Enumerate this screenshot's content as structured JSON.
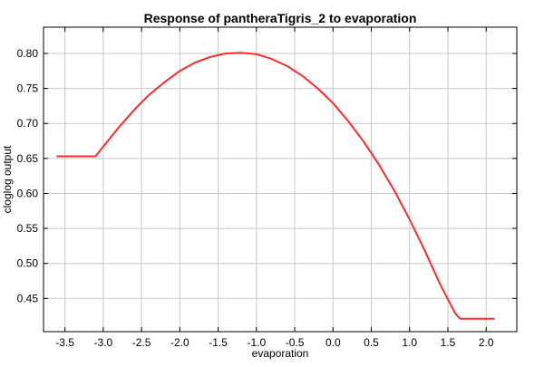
{
  "chart_data": {
    "type": "line",
    "title": "Response of pantheraTigris_2 to evaporation",
    "xlabel": "evaporation",
    "ylabel": "cloglog output",
    "xlim": [
      -3.78,
      2.4
    ],
    "ylim": [
      0.4025,
      0.8375
    ],
    "xticks": [
      -3.5,
      -3.0,
      -2.5,
      -2.0,
      -1.5,
      -1.0,
      -0.5,
      0.0,
      0.5,
      1.0,
      1.5,
      2.0
    ],
    "xtick_labels": [
      "-3.5",
      "-3.0",
      "-2.5",
      "-2.0",
      "-1.5",
      "-1.0",
      "-0.5",
      "0.0",
      "0.5",
      "1.0",
      "1.5",
      "2.0"
    ],
    "yticks": [
      0.45,
      0.5,
      0.55,
      0.6,
      0.65,
      0.7,
      0.75,
      0.8
    ],
    "ytick_labels": [
      "0.45",
      "0.50",
      "0.55",
      "0.60",
      "0.65",
      "0.70",
      "0.75",
      "0.80"
    ],
    "grid": true,
    "series": [
      {
        "color": "#ff2a2a",
        "x": [
          -3.6,
          -3.1,
          -3.0,
          -2.8,
          -2.6,
          -2.4,
          -2.2,
          -2.0,
          -1.8,
          -1.6,
          -1.4,
          -1.2,
          -1.0,
          -0.8,
          -0.6,
          -0.4,
          -0.2,
          0.0,
          0.2,
          0.4,
          0.6,
          0.8,
          1.0,
          1.2,
          1.4,
          1.6,
          1.66,
          2.1
        ],
        "y": [
          0.653,
          0.653,
          0.667,
          0.694,
          0.719,
          0.741,
          0.759,
          0.775,
          0.787,
          0.795,
          0.8,
          0.801,
          0.799,
          0.792,
          0.782,
          0.768,
          0.75,
          0.729,
          0.703,
          0.674,
          0.641,
          0.604,
          0.563,
          0.518,
          0.47,
          0.428,
          0.421,
          0.421
        ]
      }
    ]
  }
}
